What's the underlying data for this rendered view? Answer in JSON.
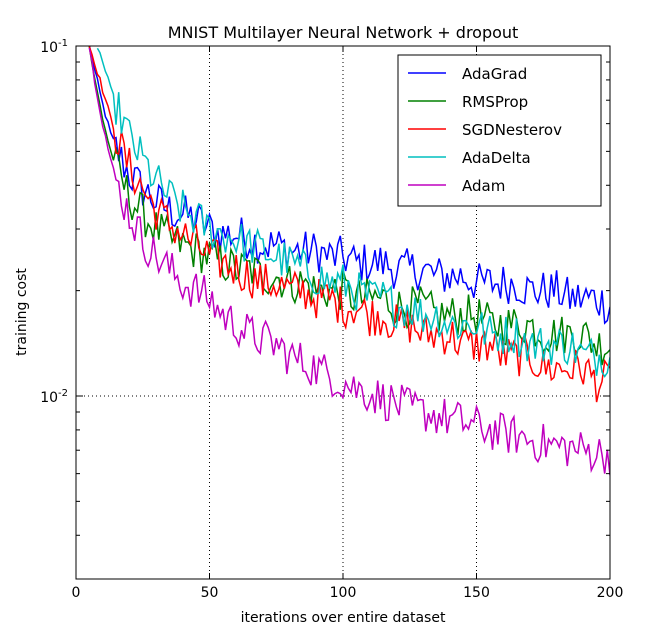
{
  "chart_data": {
    "type": "line",
    "title": "MNIST Multilayer Neural Network + dropout",
    "xlabel": "iterations over entire dataset",
    "ylabel": "training cost",
    "xlim": [
      0,
      200
    ],
    "ylim": [
      0.003,
      0.1
    ],
    "yscale": "log",
    "grid": true,
    "legend_loc": "upper right",
    "xticks": [
      "0",
      "50",
      "100",
      "150",
      "200"
    ],
    "yticks": [
      {
        "value": 0.1,
        "base": "10",
        "exp": "-1"
      },
      {
        "value": 0.01,
        "base": "10",
        "exp": "-2"
      }
    ],
    "series": [
      {
        "name": "AdaGrad",
        "color": "#0000ff",
        "x": [
          5,
          7,
          10,
          13,
          16,
          20,
          25,
          30,
          35,
          40,
          45,
          50,
          55,
          60,
          65,
          70,
          75,
          80,
          85,
          90,
          95,
          100,
          105,
          110,
          115,
          120,
          125,
          130,
          135,
          140,
          145,
          150,
          155,
          160,
          165,
          170,
          175,
          180,
          185,
          190,
          195,
          200
        ],
        "y": [
          0.1,
          0.085,
          0.068,
          0.056,
          0.049,
          0.043,
          0.039,
          0.036,
          0.034,
          0.033,
          0.032,
          0.03,
          0.029,
          0.029,
          0.028,
          0.027,
          0.027,
          0.026,
          0.026,
          0.026,
          0.025,
          0.025,
          0.024,
          0.024,
          0.024,
          0.023,
          0.023,
          0.023,
          0.022,
          0.022,
          0.022,
          0.021,
          0.021,
          0.021,
          0.021,
          0.02,
          0.02,
          0.02,
          0.019,
          0.019,
          0.019,
          0.018
        ]
      },
      {
        "name": "RMSProp",
        "color": "#008000",
        "x": [
          5,
          7,
          10,
          13,
          16,
          20,
          25,
          30,
          35,
          40,
          45,
          50,
          55,
          60,
          65,
          70,
          75,
          80,
          85,
          90,
          95,
          100,
          105,
          110,
          115,
          120,
          125,
          130,
          135,
          140,
          145,
          150,
          155,
          160,
          165,
          170,
          175,
          180,
          185,
          190,
          195,
          200
        ],
        "y": [
          0.1,
          0.08,
          0.062,
          0.05,
          0.043,
          0.037,
          0.033,
          0.03,
          0.028,
          0.027,
          0.026,
          0.025,
          0.024,
          0.023,
          0.023,
          0.022,
          0.022,
          0.021,
          0.021,
          0.02,
          0.02,
          0.02,
          0.019,
          0.019,
          0.019,
          0.018,
          0.018,
          0.018,
          0.017,
          0.017,
          0.017,
          0.017,
          0.016,
          0.016,
          0.016,
          0.016,
          0.015,
          0.015,
          0.015,
          0.015,
          0.014,
          0.014
        ]
      },
      {
        "name": "SGDNesterov",
        "color": "#ff0000",
        "x": [
          5,
          7,
          10,
          13,
          16,
          20,
          25,
          30,
          35,
          40,
          45,
          50,
          55,
          60,
          65,
          70,
          75,
          80,
          85,
          90,
          95,
          100,
          105,
          110,
          115,
          120,
          125,
          130,
          135,
          140,
          145,
          150,
          155,
          160,
          165,
          170,
          175,
          180,
          185,
          190,
          195,
          200
        ],
        "y": [
          0.1,
          0.09,
          0.075,
          0.062,
          0.053,
          0.045,
          0.039,
          0.034,
          0.031,
          0.029,
          0.027,
          0.025,
          0.024,
          0.023,
          0.022,
          0.021,
          0.021,
          0.02,
          0.02,
          0.019,
          0.019,
          0.018,
          0.018,
          0.017,
          0.017,
          0.016,
          0.016,
          0.015,
          0.015,
          0.015,
          0.014,
          0.014,
          0.014,
          0.013,
          0.013,
          0.013,
          0.012,
          0.012,
          0.012,
          0.012,
          0.011,
          0.011
        ]
      },
      {
        "name": "AdaDelta",
        "color": "#00bfbf",
        "x": [
          8,
          10,
          13,
          16,
          20,
          25,
          30,
          35,
          40,
          45,
          50,
          55,
          60,
          65,
          70,
          75,
          80,
          85,
          90,
          95,
          100,
          105,
          110,
          115,
          120,
          125,
          130,
          135,
          140,
          145,
          150,
          155,
          160,
          165,
          170,
          175,
          180,
          185,
          190,
          195,
          200
        ],
        "y": [
          0.1,
          0.09,
          0.075,
          0.065,
          0.055,
          0.047,
          0.041,
          0.037,
          0.034,
          0.032,
          0.03,
          0.029,
          0.028,
          0.027,
          0.026,
          0.025,
          0.024,
          0.023,
          0.022,
          0.021,
          0.021,
          0.02,
          0.019,
          0.019,
          0.018,
          0.018,
          0.017,
          0.017,
          0.016,
          0.016,
          0.016,
          0.015,
          0.015,
          0.015,
          0.014,
          0.014,
          0.014,
          0.014,
          0.013,
          0.013,
          0.013
        ]
      },
      {
        "name": "Adam",
        "color": "#bf00bf",
        "x": [
          5,
          7,
          10,
          13,
          16,
          20,
          25,
          30,
          35,
          40,
          45,
          50,
          55,
          60,
          65,
          70,
          75,
          80,
          85,
          90,
          95,
          100,
          105,
          110,
          115,
          120,
          125,
          130,
          135,
          140,
          145,
          150,
          155,
          160,
          165,
          170,
          175,
          180,
          185,
          190,
          195,
          200
        ],
        "y": [
          0.1,
          0.08,
          0.06,
          0.047,
          0.039,
          0.033,
          0.028,
          0.025,
          0.023,
          0.021,
          0.02,
          0.019,
          0.017,
          0.016,
          0.015,
          0.0145,
          0.014,
          0.013,
          0.0125,
          0.012,
          0.0115,
          0.011,
          0.0105,
          0.0102,
          0.0098,
          0.0095,
          0.0092,
          0.009,
          0.0088,
          0.0086,
          0.0084,
          0.0082,
          0.008,
          0.0078,
          0.0077,
          0.0075,
          0.0073,
          0.0072,
          0.0071,
          0.007,
          0.0069,
          0.0068
        ]
      }
    ]
  }
}
